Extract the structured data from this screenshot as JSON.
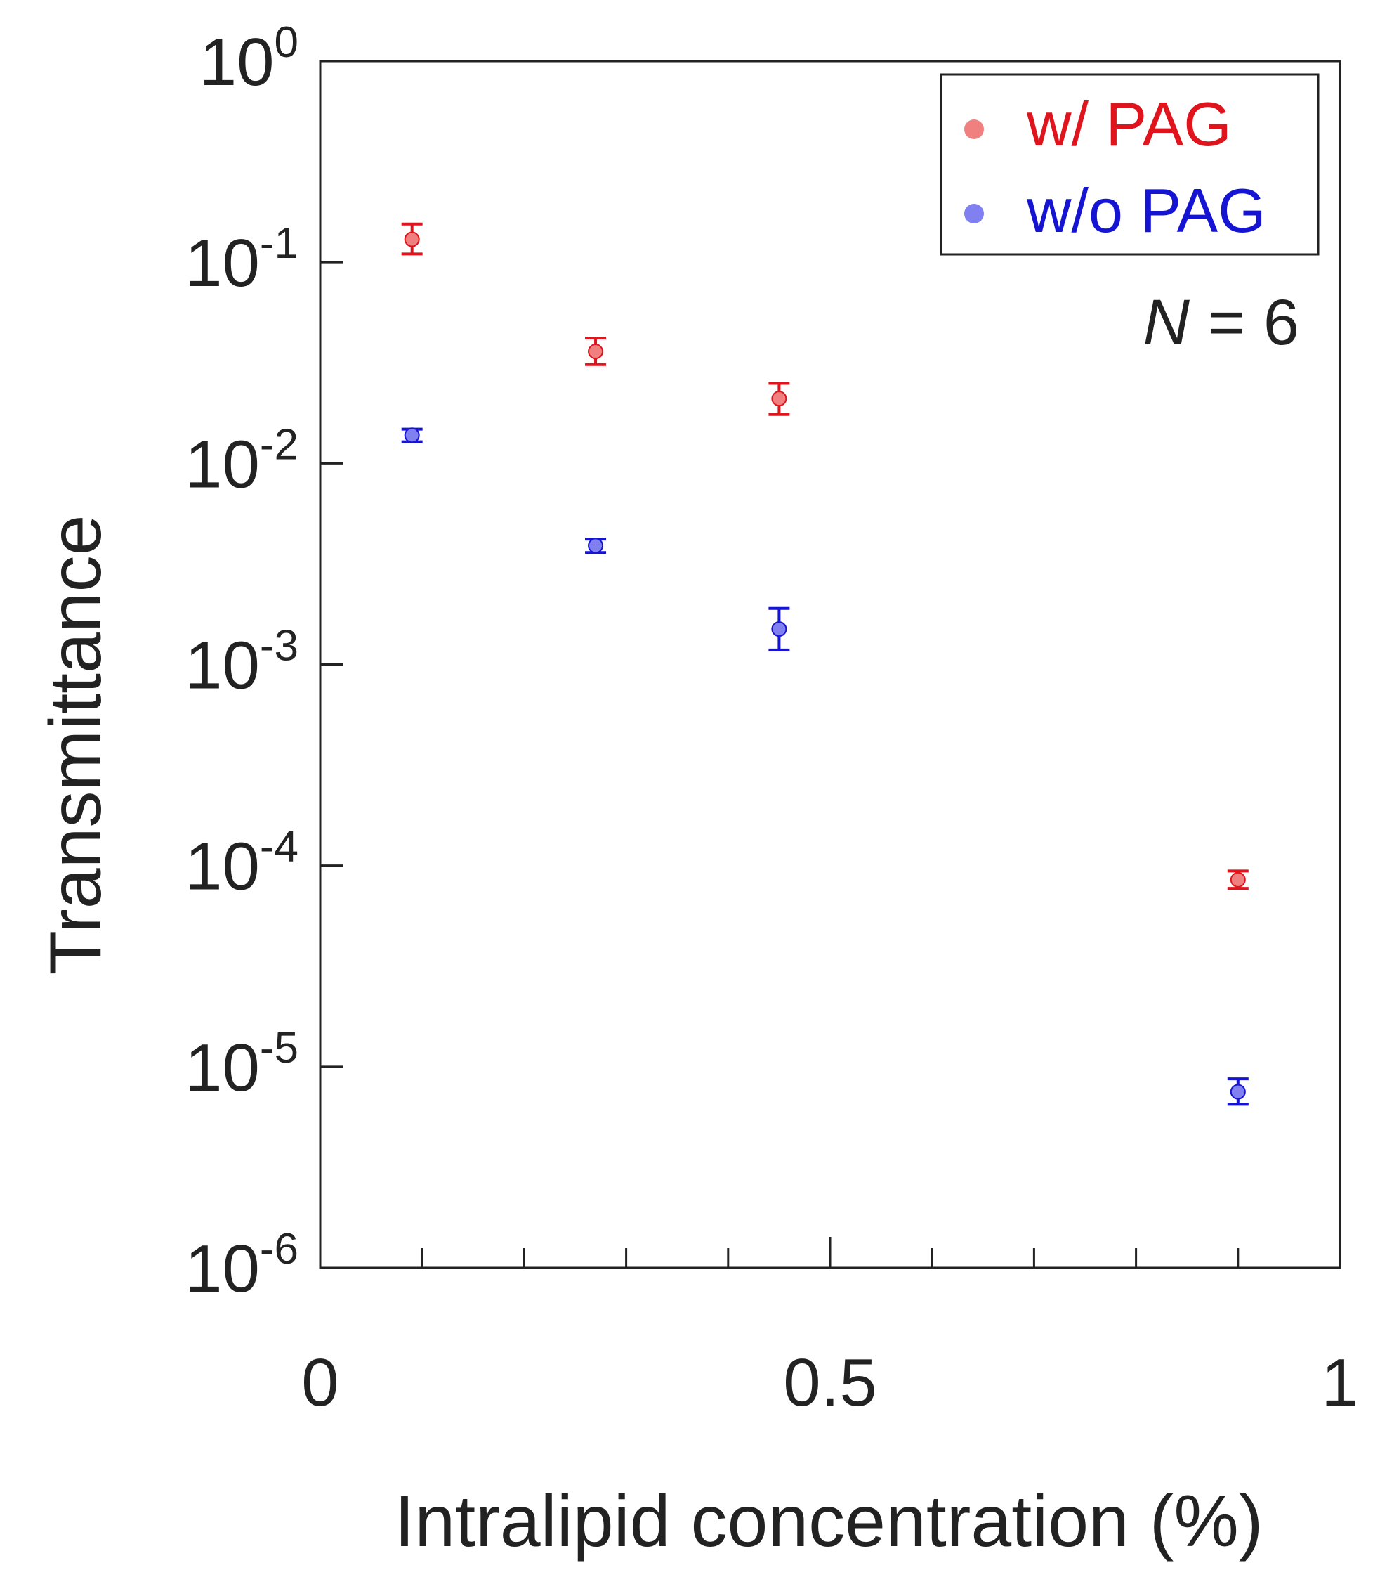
{
  "chart_data": {
    "type": "scatter",
    "title": "",
    "xlabel": "Intralipid concentration (%)",
    "ylabel": "Transmittance",
    "x_scale": "linear",
    "y_scale": "log",
    "xlim": [
      0,
      1
    ],
    "ylim": [
      1e-06,
      1
    ],
    "grid": false,
    "legend_position": "top-right",
    "x_ticks": [
      {
        "value": 0,
        "label": "0"
      },
      {
        "value": 0.5,
        "label": "0.5"
      },
      {
        "value": 1,
        "label": "1"
      }
    ],
    "x_minor_ticks": [
      0.1,
      0.2,
      0.3,
      0.4,
      0.6,
      0.7,
      0.8,
      0.9
    ],
    "y_ticks": [
      {
        "value": 1,
        "base": "10",
        "exponent": "0"
      },
      {
        "value": 0.1,
        "base": "10",
        "exponent": "-1"
      },
      {
        "value": 0.01,
        "base": "10",
        "exponent": "-2"
      },
      {
        "value": 0.001,
        "base": "10",
        "exponent": "-3"
      },
      {
        "value": 0.0001,
        "base": "10",
        "exponent": "-4"
      },
      {
        "value": 1e-05,
        "base": "10",
        "exponent": "-5"
      },
      {
        "value": 1e-06,
        "base": "10",
        "exponent": "-6"
      }
    ],
    "series": [
      {
        "name": "w/ PAG",
        "text_color": "#e0141c",
        "marker_color": "#f08080",
        "points": [
          {
            "x": 0.09,
            "y": 0.13,
            "y_low": 0.11,
            "y_high": 0.155
          },
          {
            "x": 0.27,
            "y": 0.036,
            "y_low": 0.031,
            "y_high": 0.042
          },
          {
            "x": 0.45,
            "y": 0.021,
            "y_low": 0.0175,
            "y_high": 0.025
          },
          {
            "x": 0.9,
            "y": 8.5e-05,
            "y_low": 7.7e-05,
            "y_high": 9.4e-05
          }
        ]
      },
      {
        "name": "w/o PAG",
        "text_color": "#1414d2",
        "marker_color": "#8080f0",
        "points": [
          {
            "x": 0.09,
            "y": 0.0138,
            "y_low": 0.0128,
            "y_high": 0.0148
          },
          {
            "x": 0.27,
            "y": 0.0039,
            "y_low": 0.0036,
            "y_high": 0.0042
          },
          {
            "x": 0.45,
            "y": 0.0015,
            "y_low": 0.00118,
            "y_high": 0.0019
          },
          {
            "x": 0.9,
            "y": 7.5e-06,
            "y_low": 6.5e-06,
            "y_high": 8.7e-06
          }
        ]
      }
    ],
    "annotation": {
      "italic": "N",
      "rest": " = 6"
    }
  }
}
